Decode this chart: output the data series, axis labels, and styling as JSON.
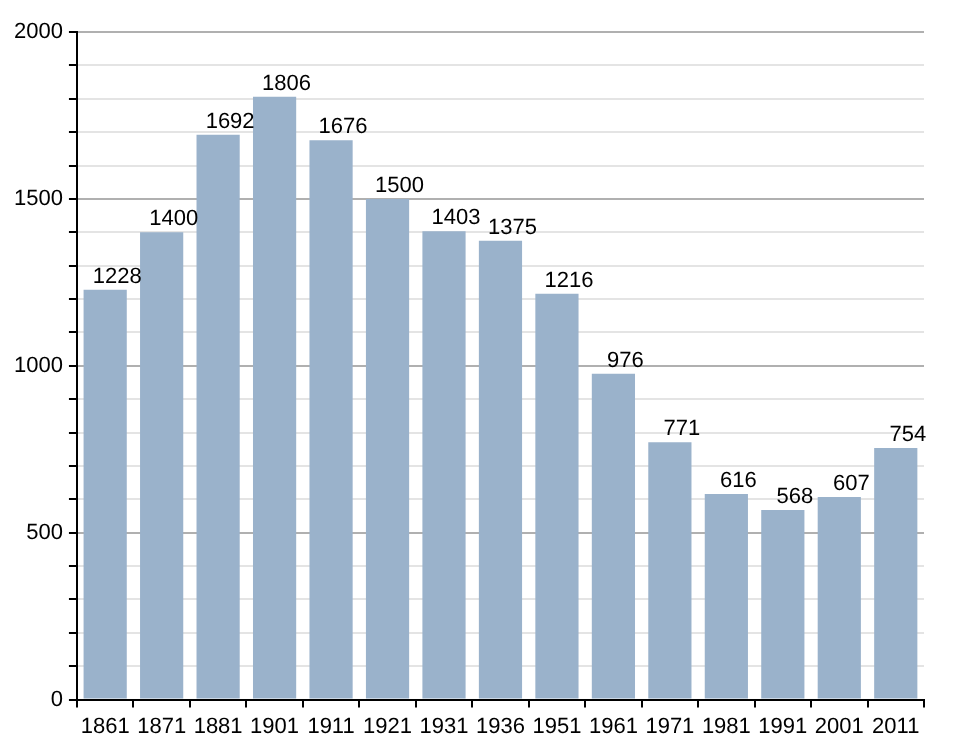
{
  "chart_data": {
    "type": "bar",
    "categories": [
      "1861",
      "1871",
      "1881",
      "1901",
      "1911",
      "1921",
      "1931",
      "1936",
      "1951",
      "1961",
      "1971",
      "1981",
      "1991",
      "2001",
      "2011"
    ],
    "values": [
      1228,
      1400,
      1692,
      1806,
      1676,
      1500,
      1403,
      1375,
      1216,
      976,
      771,
      616,
      568,
      607,
      754
    ],
    "color": "#9ab2cb",
    "ylim": [
      0,
      2000
    ],
    "yticks": [
      0,
      {
        "value": 100,
        "label": null
      },
      {
        "value": 200,
        "label": null
      },
      {
        "value": 300,
        "label": null
      },
      {
        "value": 400,
        "label": null
      },
      500,
      {
        "value": 600,
        "label": null
      },
      {
        "value": 700,
        "label": null
      },
      {
        "value": 800,
        "label": null
      },
      {
        "value": 900,
        "label": null
      },
      1000,
      {
        "value": 1100,
        "label": null
      },
      {
        "value": 1200,
        "label": null
      },
      {
        "value": 1300,
        "label": null
      },
      {
        "value": 1400,
        "label": null
      },
      1500,
      {
        "value": 1600,
        "label": null
      },
      {
        "value": 1700,
        "label": null
      },
      {
        "value": 1800,
        "label": null
      },
      {
        "value": 1900,
        "label": null
      },
      2000
    ],
    "grid": true,
    "data_labels": true,
    "legend": false
  }
}
